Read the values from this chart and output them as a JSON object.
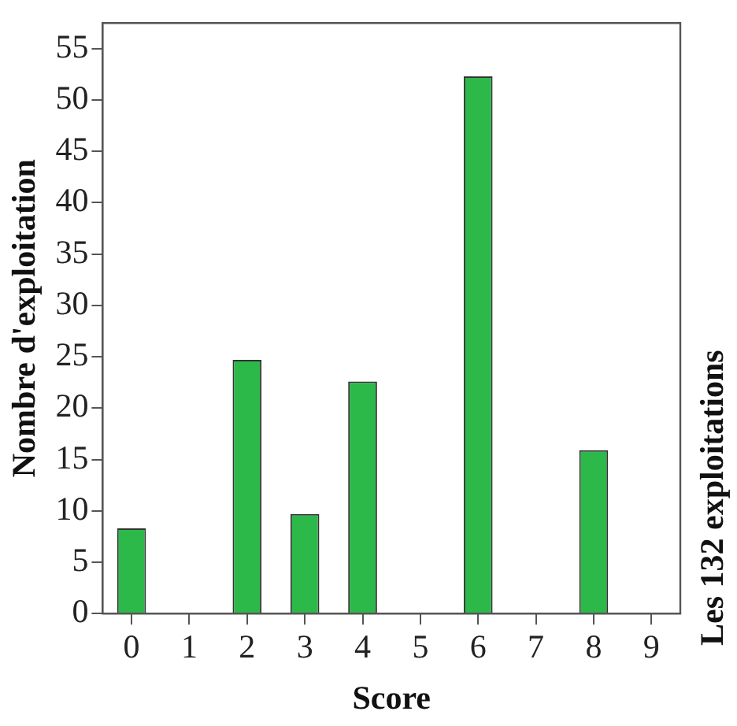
{
  "chart_data": {
    "type": "bar",
    "xlabel": "Score",
    "ylabel": "Nombre d'exploitation",
    "annotations": [
      "Les 132 exploitations"
    ],
    "x": [
      0,
      2,
      3,
      4,
      6,
      8
    ],
    "values": [
      8.3,
      24.7,
      9.7,
      22.6,
      52.3,
      15.9
    ],
    "color": "#2db84a",
    "xlim": [
      -0.5,
      9.5
    ],
    "xticks": [
      0,
      1,
      2,
      3,
      4,
      5,
      6,
      7,
      8,
      9
    ],
    "ylim": [
      0,
      57.5
    ],
    "yticks": [
      0,
      5,
      10,
      15,
      20,
      25,
      30,
      35,
      40,
      45,
      50,
      55
    ],
    "grid": false,
    "legend": false
  }
}
